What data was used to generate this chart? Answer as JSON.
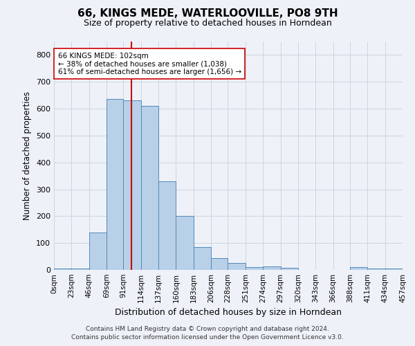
{
  "title": "66, KINGS MEDE, WATERLOOVILLE, PO8 9TH",
  "subtitle": "Size of property relative to detached houses in Horndean",
  "xlabel": "Distribution of detached houses by size in Horndean",
  "ylabel": "Number of detached properties",
  "property_label": "66 KINGS MEDE: 102sqm",
  "annotation_line1": "← 38% of detached houses are smaller (1,038)",
  "annotation_line2": "61% of semi-detached houses are larger (1,656) →",
  "footer_line1": "Contains HM Land Registry data © Crown copyright and database right 2024.",
  "footer_line2": "Contains public sector information licensed under the Open Government Licence v3.0.",
  "bin_edges": [
    0,
    23,
    46,
    69,
    91,
    114,
    137,
    160,
    183,
    206,
    228,
    251,
    274,
    297,
    320,
    343,
    366,
    388,
    411,
    434,
    457
  ],
  "bin_counts": [
    5,
    5,
    140,
    635,
    630,
    610,
    330,
    200,
    85,
    45,
    25,
    10,
    12,
    7,
    0,
    0,
    0,
    10,
    5,
    5
  ],
  "bar_facecolor": "#b8d0e8",
  "bar_edgecolor": "#5588bb",
  "vline_x": 102,
  "vline_color": "#cc0000",
  "grid_color": "#c8d0dc",
  "bg_color": "#eef2f8",
  "ylim": [
    0,
    850
  ],
  "yticks": [
    0,
    100,
    200,
    300,
    400,
    500,
    600,
    700,
    800
  ]
}
